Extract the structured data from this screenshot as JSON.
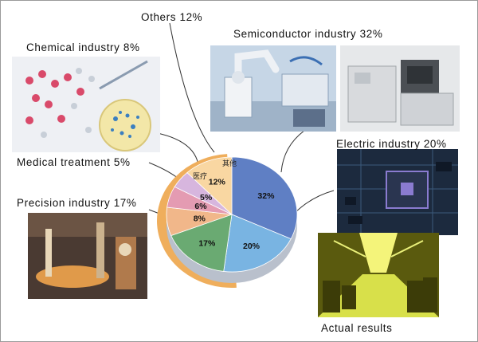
{
  "captions": {
    "others": "Others 12%",
    "semiconductor": "Semiconductor industry 32%",
    "chemical": "Chemical industry 8%",
    "medical": "Medical treatment 5%",
    "electric": "Electric industry 20%",
    "precision": "Precision industry 17%",
    "actual": "Actual results"
  },
  "chart_data": {
    "type": "pie",
    "categories": [
      "其他",
      "医疗",
      "",
      "",
      "",
      "",
      ""
    ],
    "slices": [
      {
        "label": "32%",
        "value": 32,
        "color": "#5f7fc4"
      },
      {
        "label": "20%",
        "value": 20,
        "color": "#79b4e2"
      },
      {
        "label": "17%",
        "value": 17,
        "color": "#6aaa72"
      },
      {
        "label": "8%",
        "value": 8,
        "color": "#f1b78a"
      },
      {
        "label": "6%",
        "value": 6,
        "color": "#e49bb2"
      },
      {
        "label": "5%",
        "value": 5,
        "color": "#d7b6de"
      },
      {
        "label": "12%",
        "value": 12,
        "color": "#f9d7a2"
      }
    ],
    "slice_names": [
      "Semiconductor industry",
      "Electric industry",
      "Precision industry",
      "Chemical industry",
      "",
      "Medical treatment",
      "Others"
    ],
    "extra_labels": {
      "others_cn": "其他",
      "medical_cn": "医疗"
    },
    "outer_ring_color": "#efae5c"
  },
  "photos": {
    "chemical": {
      "colors": [
        "#e7e9ef",
        "#d94a6a",
        "#f3e7a8",
        "#3b7fc0"
      ]
    },
    "semiconductor_robot": {
      "colors": [
        "#c6d6e6",
        "#f1f3f6",
        "#5c6f8a"
      ]
    },
    "semiconductor_machine": {
      "colors": [
        "#d8dadd",
        "#9fa4a8",
        "#5a5f63"
      ]
    },
    "electric": {
      "colors": [
        "#1c2a3e",
        "#3b5a7c",
        "#8a7bd0"
      ]
    },
    "precision": {
      "colors": [
        "#4a3a32",
        "#b07a4c",
        "#e8d7b8"
      ]
    },
    "actual": {
      "colors": [
        "#5a5a0e",
        "#d8e04a",
        "#f4f47a"
      ]
    }
  }
}
